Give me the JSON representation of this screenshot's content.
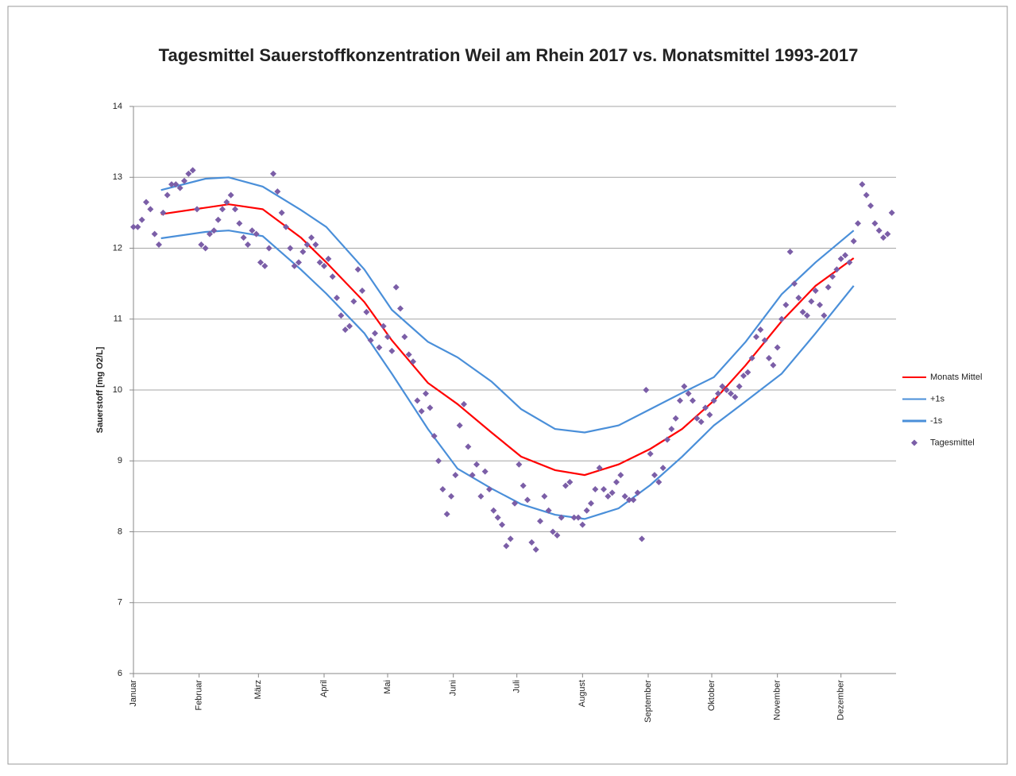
{
  "chart_data": {
    "type": "line",
    "title": "Tagesmittel Sauerstoffkonzentration Weil am Rhein 2017 vs. Monatsmittel 1993-2017",
    "y_label": "Sauerstoff [mg O2/L]",
    "xlim": [
      1,
      361
    ],
    "xticks": [
      {
        "value": 1,
        "label": "Januar"
      },
      {
        "value": 32,
        "label": "Februar"
      },
      {
        "value": 60,
        "label": "März"
      },
      {
        "value": 91,
        "label": "April"
      },
      {
        "value": 121,
        "label": "Mai"
      },
      {
        "value": 152,
        "label": "Juni"
      },
      {
        "value": 182,
        "label": "Juli"
      },
      {
        "value": 213,
        "label": "August"
      },
      {
        "value": 244,
        "label": "September"
      },
      {
        "value": 274,
        "label": "Oktober"
      },
      {
        "value": 305,
        "label": "November"
      },
      {
        "value": 335,
        "label": "Dezember"
      }
    ],
    "ylim": [
      6,
      14
    ],
    "yticks": [
      6,
      7,
      8,
      9,
      10,
      11,
      12,
      13,
      14
    ],
    "grid": true,
    "legend": "right",
    "series": [
      {
        "name": "Monats Mittel",
        "type": "line",
        "color": "#ff0000",
        "x": [
          14,
          46,
          62,
          80,
          92,
          110,
          123,
          140,
          154,
          170,
          184,
          200,
          214,
          230,
          245,
          260,
          275,
          290,
          307,
          323,
          341
        ],
        "values": [
          12.48,
          12.62,
          12.55,
          12.15,
          11.8,
          11.24,
          10.7,
          10.1,
          9.8,
          9.4,
          9.06,
          8.87,
          8.8,
          8.95,
          9.17,
          9.45,
          9.85,
          10.35,
          10.97,
          11.47,
          11.86
        ]
      },
      {
        "name": "+1s",
        "type": "line",
        "color": "#4a8fd9",
        "x": [
          14,
          35,
          46,
          62,
          80,
          92,
          110,
          123,
          140,
          154,
          170,
          184,
          200,
          214,
          230,
          245,
          260,
          275,
          290,
          307,
          323,
          341
        ],
        "values": [
          12.82,
          12.98,
          13.0,
          12.87,
          12.54,
          12.3,
          11.7,
          11.13,
          10.68,
          10.46,
          10.12,
          9.73,
          9.45,
          9.4,
          9.5,
          9.73,
          9.96,
          10.18,
          10.68,
          11.35,
          11.8,
          12.25
        ]
      },
      {
        "name": "-1s",
        "type": "line",
        "color": "#4a8fd9",
        "x": [
          14,
          35,
          46,
          62,
          80,
          92,
          110,
          123,
          140,
          154,
          170,
          184,
          200,
          214,
          230,
          245,
          260,
          275,
          290,
          307,
          323,
          341
        ],
        "values": [
          12.14,
          12.23,
          12.25,
          12.17,
          11.7,
          11.36,
          10.8,
          10.23,
          9.45,
          8.89,
          8.61,
          8.39,
          8.24,
          8.18,
          8.33,
          8.66,
          9.06,
          9.5,
          9.84,
          10.23,
          10.8,
          11.47
        ]
      },
      {
        "name": "Tagesmittel",
        "type": "scatter",
        "color": "#7b5ea7",
        "x": [
          1,
          3,
          5,
          7,
          9,
          11,
          13,
          15,
          17,
          19,
          21,
          23,
          25,
          27,
          29,
          31,
          33,
          35,
          37,
          39,
          41,
          43,
          45,
          47,
          49,
          51,
          53,
          55,
          57,
          59,
          61,
          63,
          65,
          67,
          69,
          71,
          73,
          75,
          77,
          79,
          81,
          83,
          85,
          87,
          89,
          91,
          93,
          95,
          97,
          99,
          101,
          103,
          105,
          107,
          109,
          111,
          113,
          115,
          117,
          119,
          121,
          123,
          125,
          127,
          129,
          131,
          133,
          135,
          137,
          139,
          141,
          143,
          145,
          147,
          149,
          151,
          153,
          155,
          157,
          159,
          161,
          163,
          165,
          167,
          169,
          171,
          173,
          175,
          177,
          179,
          181,
          183,
          185,
          187,
          189,
          191,
          193,
          195,
          197,
          199,
          201,
          203,
          205,
          207,
          209,
          211,
          213,
          215,
          217,
          219,
          221,
          223,
          225,
          227,
          229,
          231,
          233,
          235,
          237,
          239,
          241,
          243,
          245,
          247,
          249,
          251,
          253,
          255,
          257,
          259,
          261,
          263,
          265,
          267,
          269,
          271,
          273,
          275,
          277,
          279,
          281,
          283,
          285,
          287,
          289,
          291,
          293,
          295,
          297,
          299,
          301,
          303,
          305,
          307,
          309,
          311,
          313,
          315,
          317,
          319,
          321,
          323,
          325,
          327,
          329,
          331,
          333,
          335,
          337,
          339,
          341,
          343,
          345,
          347,
          349,
          351,
          353,
          355,
          357,
          359
        ],
        "values": [
          12.3,
          12.3,
          12.4,
          12.65,
          12.55,
          12.2,
          12.05,
          12.5,
          12.75,
          12.9,
          12.9,
          12.85,
          12.95,
          13.05,
          13.1,
          12.55,
          12.05,
          12.0,
          12.2,
          12.25,
          12.4,
          12.55,
          12.65,
          12.75,
          12.55,
          12.35,
          12.15,
          12.05,
          12.25,
          12.2,
          11.8,
          11.75,
          12.0,
          13.05,
          12.8,
          12.5,
          12.3,
          12.0,
          11.75,
          11.8,
          11.95,
          12.05,
          12.15,
          12.05,
          11.8,
          11.75,
          11.85,
          11.6,
          11.3,
          11.05,
          10.85,
          10.9,
          11.25,
          11.7,
          11.4,
          11.1,
          10.7,
          10.8,
          10.6,
          10.9,
          10.75,
          10.55,
          11.45,
          11.15,
          10.75,
          10.5,
          10.4,
          9.85,
          9.7,
          9.95,
          9.75,
          9.35,
          9.0,
          8.6,
          8.25,
          8.5,
          8.8,
          9.5,
          9.8,
          9.2,
          8.8,
          8.95,
          8.5,
          8.85,
          8.6,
          8.3,
          8.2,
          8.1,
          7.8,
          7.9,
          8.4,
          8.95,
          8.65,
          8.45,
          7.85,
          7.75,
          8.15,
          8.5,
          8.3,
          8.0,
          7.95,
          8.2,
          8.65,
          8.7,
          8.2,
          8.2,
          8.1,
          8.3,
          8.4,
          8.6,
          8.9,
          8.6,
          8.5,
          8.55,
          8.7,
          8.8,
          8.5,
          8.45,
          8.45,
          8.55,
          7.9,
          10.0,
          9.1,
          8.8,
          8.7,
          8.9,
          9.3,
          9.45,
          9.6,
          9.85,
          10.05,
          9.95,
          9.85,
          9.6,
          9.55,
          9.75,
          9.65,
          9.85,
          9.95,
          10.05,
          10.0,
          9.95,
          9.9,
          10.05,
          10.2,
          10.25,
          10.45,
          10.75,
          10.85,
          10.7,
          10.45,
          10.35,
          10.6,
          11.0,
          11.2,
          11.95,
          11.5,
          11.3,
          11.1,
          11.05,
          11.25,
          11.4,
          11.2,
          11.05,
          11.45,
          11.6,
          11.7,
          11.85,
          11.9,
          11.8,
          12.1,
          12.35,
          12.9,
          12.75,
          12.6,
          12.35,
          12.25,
          12.15,
          12.2,
          12.5
        ]
      }
    ]
  }
}
